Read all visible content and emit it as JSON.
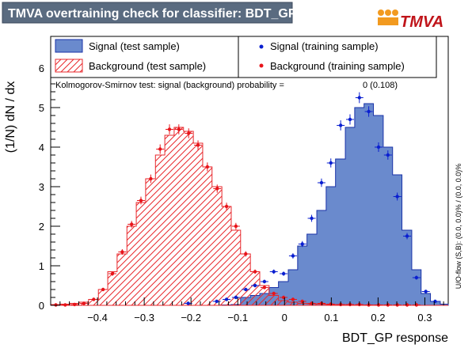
{
  "window": {
    "title": "TMVA overtraining check for classifier: BDT_GP",
    "logo_text": "TMVA"
  },
  "chart_data": {
    "type": "histogram",
    "xlabel": "BDT_GP response",
    "ylabel": "(1/N) dN / dx",
    "xlim": [
      -0.5,
      0.35
    ],
    "ylim": [
      0,
      6.8
    ],
    "x_ticks": [
      -0.4,
      -0.3,
      -0.2,
      -0.1,
      0,
      0.1,
      0.2,
      0.3
    ],
    "x_tick_labels": [
      "−0.4",
      "−0.3",
      "−0.2",
      "−0.1",
      "0",
      "0.1",
      "0.2",
      "0.3"
    ],
    "y_ticks": [
      0,
      1,
      2,
      3,
      4,
      5,
      6
    ],
    "y_tick_labels": [
      "0",
      "1",
      "2",
      "3",
      "4",
      "5",
      "6"
    ],
    "bin_edges": [
      -0.5,
      -0.479,
      -0.459,
      -0.439,
      -0.419,
      -0.398,
      -0.378,
      -0.358,
      -0.337,
      -0.317,
      -0.297,
      -0.276,
      -0.256,
      -0.236,
      -0.216,
      -0.195,
      -0.175,
      -0.155,
      -0.134,
      -0.114,
      -0.094,
      -0.073,
      -0.053,
      -0.033,
      -0.013,
      0.008,
      0.028,
      0.048,
      0.069,
      0.089,
      0.109,
      0.13,
      0.15,
      0.17,
      0.19,
      0.211,
      0.231,
      0.251,
      0.272,
      0.292,
      0.312,
      0.333,
      0.35
    ],
    "series": [
      {
        "name": "Signal (test sample)",
        "style": "filled-histogram",
        "color": "#6a8acd",
        "line_color": "#1a33a8",
        "values": [
          0,
          0,
          0,
          0,
          0,
          0,
          0,
          0,
          0,
          0,
          0,
          0,
          0,
          0,
          0,
          0,
          0,
          0,
          0.01,
          0.02,
          0.2,
          0.25,
          0.3,
          0.45,
          0.6,
          0.9,
          1.5,
          1.8,
          2.4,
          3.0,
          3.7,
          4.5,
          5.0,
          5.1,
          4.8,
          4.0,
          3.3,
          1.9,
          0.9,
          0.3,
          0.1,
          0.03
        ]
      },
      {
        "name": "Background (test sample)",
        "style": "hatched-histogram",
        "color": "#e8282c",
        "values": [
          0.02,
          0.03,
          0.05,
          0.08,
          0.15,
          0.4,
          0.85,
          1.3,
          2.0,
          2.6,
          3.2,
          3.8,
          4.3,
          4.5,
          4.4,
          4.1,
          3.5,
          3.0,
          2.5,
          1.9,
          1.3,
          0.85,
          0.5,
          0.25,
          0.12,
          0.08,
          0.05,
          0.04,
          0.03,
          0.02,
          0.02,
          0.01,
          0.01,
          0.01,
          0.01,
          0,
          0,
          0,
          0,
          0,
          0,
          0
        ]
      },
      {
        "name": "Signal (training sample)",
        "style": "markers",
        "color": "#0a1fd0",
        "points": [
          [
            -0.206,
            0.05
          ],
          [
            -0.145,
            0.1
          ],
          [
            -0.124,
            0.15
          ],
          [
            -0.104,
            0.2
          ],
          [
            -0.083,
            0.4
          ],
          [
            -0.063,
            0.5
          ],
          [
            -0.043,
            0.6
          ],
          [
            -0.023,
            0.85
          ],
          [
            -0.002,
            0.8
          ],
          [
            0.018,
            1.25
          ],
          [
            0.038,
            1.55
          ],
          [
            0.058,
            2.2
          ],
          [
            0.079,
            3.1
          ],
          [
            0.099,
            3.6
          ],
          [
            0.12,
            4.55
          ],
          [
            0.14,
            4.7
          ],
          [
            0.16,
            5.25
          ],
          [
            0.18,
            4.9
          ],
          [
            0.201,
            4.0
          ],
          [
            0.221,
            3.8
          ],
          [
            0.241,
            2.75
          ],
          [
            0.262,
            1.75
          ],
          [
            0.282,
            0.7
          ],
          [
            0.302,
            0.35
          ],
          [
            0.322,
            0.1
          ]
        ]
      },
      {
        "name": "Background (training sample)",
        "style": "markers",
        "color": "#e8141a",
        "points": [
          [
            -0.489,
            0.01
          ],
          [
            -0.469,
            0.01
          ],
          [
            -0.449,
            0.02
          ],
          [
            -0.429,
            0.05
          ],
          [
            -0.408,
            0.15
          ],
          [
            -0.388,
            0.4
          ],
          [
            -0.368,
            0.8
          ],
          [
            -0.347,
            1.35
          ],
          [
            -0.327,
            2.05
          ],
          [
            -0.307,
            2.65
          ],
          [
            -0.286,
            3.2
          ],
          [
            -0.266,
            3.95
          ],
          [
            -0.246,
            4.45
          ],
          [
            -0.226,
            4.45
          ],
          [
            -0.205,
            4.35
          ],
          [
            -0.185,
            4.05
          ],
          [
            -0.165,
            3.5
          ],
          [
            -0.144,
            2.95
          ],
          [
            -0.124,
            2.5
          ],
          [
            -0.104,
            2.0
          ],
          [
            -0.083,
            1.3
          ],
          [
            -0.063,
            0.85
          ],
          [
            -0.043,
            0.45
          ],
          [
            -0.023,
            0.3
          ],
          [
            -0.002,
            0.2
          ],
          [
            0.018,
            0.15
          ],
          [
            0.038,
            0.1
          ],
          [
            0.058,
            0.05
          ],
          [
            0.079,
            0.05
          ],
          [
            0.099,
            0.03
          ],
          [
            0.12,
            0.02
          ],
          [
            0.14,
            0.02
          ],
          [
            0.16,
            0.02
          ],
          [
            0.18,
            0.01
          ],
          [
            0.201,
            0.01
          ],
          [
            0.221,
            0.01
          ],
          [
            0.241,
            0.01
          ],
          [
            0.262,
            0.01
          ],
          [
            0.282,
            0.01
          ]
        ]
      }
    ],
    "annotations": {
      "ks_text": "Kolmogorov-Smirnov test: signal (background) probability =",
      "ks_values": "0 (0.108)",
      "overflow_text": "U/O-flow (S,B): (0.0, 0.0)% / (0.0, 0.0)%"
    },
    "legend": {
      "placement": "top",
      "entries": [
        "Signal (test sample)",
        "Signal (training sample)",
        "Background (test sample)",
        "Background (training sample)"
      ]
    }
  }
}
